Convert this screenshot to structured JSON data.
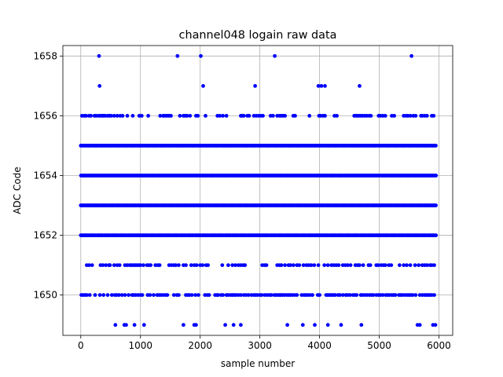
{
  "chart_data": {
    "type": "scatter",
    "title": "channel048 logain raw data",
    "xlabel": "sample number",
    "ylabel": "ADC Code",
    "xlim": [
      -300,
      6230
    ],
    "ylim": [
      1648.65,
      1658.35
    ],
    "xticks": [
      0,
      1000,
      2000,
      3000,
      4000,
      5000,
      6000
    ],
    "yticks": [
      1650,
      1652,
      1654,
      1656,
      1658
    ],
    "grid": true,
    "marker_color": "#0000ff",
    "sample_count": 5950,
    "dense_levels": [
      1652,
      1653,
      1654,
      1655
    ],
    "sparse_points": {
      "1658": [
        305,
        1620,
        2010,
        3250,
        5540
      ],
      "1657": [
        315,
        2050,
        2920,
        3980,
        4030,
        4090,
        4670
      ],
      "1649": [
        580,
        730,
        760,
        900,
        1060,
        1720,
        1900,
        1930,
        2420,
        2560,
        2680,
        3460,
        3720,
        3920,
        4140,
        4360,
        4700,
        5640,
        5680,
        5900,
        5940
      ],
      "1656": [
        20,
        60,
        90,
        140,
        170,
        230,
        260,
        300,
        330,
        360,
        380,
        410,
        450,
        480,
        510,
        560,
        610,
        660,
        700,
        780,
        870,
        980,
        1020,
        1130,
        1330,
        1380,
        1400,
        1430,
        1460,
        1480,
        1510,
        1660,
        1720,
        1750,
        1780,
        1830,
        1930,
        1960,
        2090,
        2290,
        2330,
        2380,
        2440,
        2680,
        2700,
        2730,
        2790,
        2820,
        2900,
        2940,
        2980,
        3020,
        3050,
        3180,
        3220,
        3290,
        3330,
        3360,
        3390,
        3420,
        3560,
        3590,
        3830,
        3990,
        4020,
        4060,
        4090,
        4250,
        4290,
        4580,
        4610,
        4630,
        4660,
        4690,
        4720,
        4760,
        4790,
        4830,
        4860,
        4990,
        5020,
        5060,
        5100,
        5210,
        5250,
        5410,
        5450,
        5480,
        5520,
        5570,
        5610,
        5700,
        5720,
        5760,
        5800,
        5880,
        5910
      ],
      "1651": [
        100,
        140,
        190,
        330,
        370,
        420,
        470,
        490,
        560,
        610,
        650,
        740,
        780,
        820,
        850,
        880,
        910,
        940,
        970,
        1000,
        1050,
        1110,
        1140,
        1170,
        1250,
        1290,
        1320,
        1480,
        1520,
        1560,
        1590,
        1640,
        1720,
        1760,
        1850,
        1900,
        1940,
        2000,
        2040,
        2100,
        2130,
        2370,
        2470,
        2540,
        2590,
        2640,
        2680,
        2720,
        2750,
        3040,
        3080,
        3110,
        3290,
        3330,
        3360,
        3420,
        3480,
        3510,
        3560,
        3620,
        3660,
        3730,
        3780,
        3820,
        3860,
        3910,
        3980,
        4080,
        4140,
        4200,
        4240,
        4280,
        4320,
        4390,
        4430,
        4470,
        4520,
        4600,
        4640,
        4670,
        4730,
        4820,
        4850,
        4950,
        4980,
        5030,
        5070,
        5100,
        5160,
        5200,
        5340,
        5410,
        5460,
        5520,
        5600,
        5660,
        5720,
        5760,
        5800,
        5850,
        5880,
        5920
      ],
      "1650": [
        10,
        40,
        70,
        100,
        150,
        240,
        320,
        380,
        450,
        520,
        570,
        600,
        640,
        690,
        740,
        800,
        860,
        890,
        920,
        960,
        1000,
        1030,
        1120,
        1160,
        1220,
        1280,
        1310,
        1340,
        1380,
        1420,
        1450,
        1560,
        1610,
        1640,
        1760,
        1790,
        1820,
        1860,
        1920,
        1970,
        2080,
        2120,
        2150,
        2250,
        2280,
        2300,
        2350,
        2380,
        2440,
        2470,
        2510,
        2540,
        2570,
        2600,
        2640,
        2680,
        2730,
        2770,
        2810,
        2860,
        2900,
        2930,
        2960,
        3000,
        3030,
        3080,
        3120,
        3160,
        3190,
        3240,
        3270,
        3300,
        3330,
        3350,
        3380,
        3410,
        3450,
        3480,
        3510,
        3540,
        3580,
        3620,
        3700,
        3740,
        3770,
        3800,
        3840,
        3880,
        3970,
        4000,
        4110,
        4140,
        4170,
        4200,
        4230,
        4260,
        4310,
        4340,
        4390,
        4440,
        4470,
        4510,
        4560,
        4590,
        4620,
        4690,
        4720,
        4760,
        4800,
        4840,
        4870,
        4900,
        4950,
        4990,
        5020,
        5060,
        5110,
        5140,
        5170,
        5210,
        5240,
        5270,
        5330,
        5360,
        5390,
        5430,
        5470,
        5500,
        5530,
        5560,
        5610,
        5680,
        5720,
        5760,
        5790,
        5820,
        5850,
        5880,
        5920
      ]
    }
  }
}
